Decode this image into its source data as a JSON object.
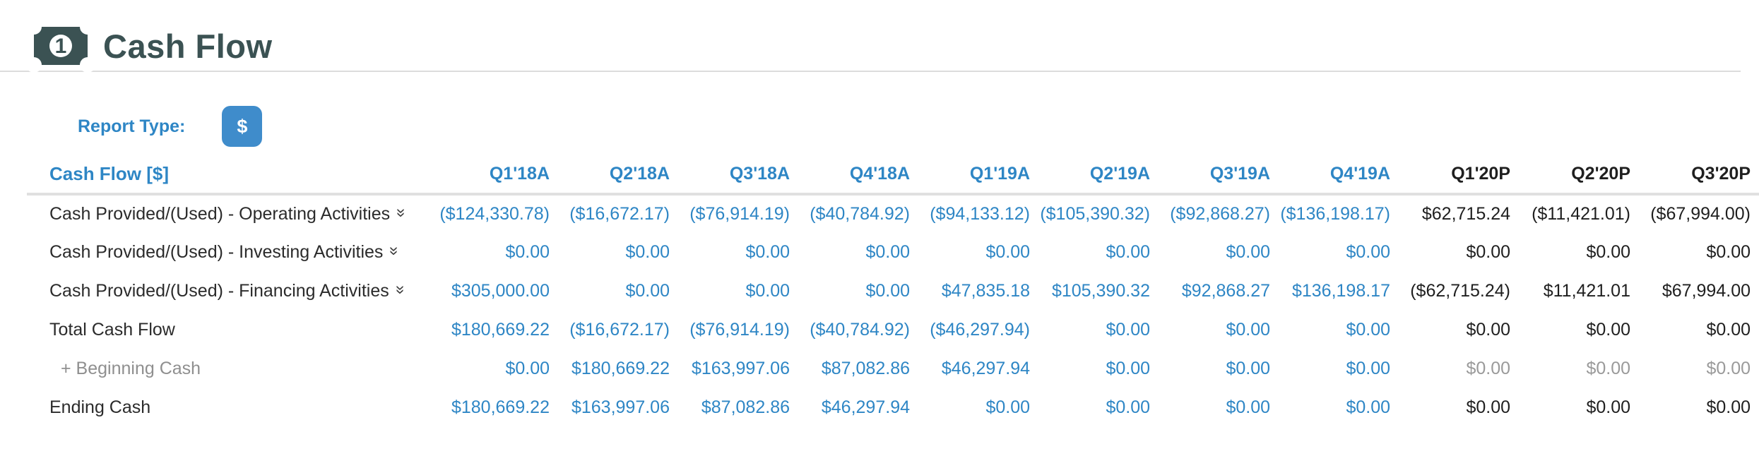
{
  "page": {
    "title": "Cash Flow"
  },
  "controls": {
    "report_type_label": "Report Type:",
    "report_type_button": "$"
  },
  "icons": {
    "title_icon": "banknote-icon",
    "expand_icon": "double-chevron-down-icon",
    "expand_glyph": "»"
  },
  "colors": {
    "title": "#3b5253",
    "accent_blue": "#2e86c5",
    "button_blue": "#3f8ccb",
    "projected_black": "#1f1f1f",
    "muted_gray": "#9a9a9a",
    "divider_gray": "#e0e0e0"
  },
  "table": {
    "title": "Cash Flow [$]",
    "columns": [
      {
        "label": "Q1'18A",
        "type": "actual"
      },
      {
        "label": "Q2'18A",
        "type": "actual"
      },
      {
        "label": "Q3'18A",
        "type": "actual"
      },
      {
        "label": "Q4'18A",
        "type": "actual"
      },
      {
        "label": "Q1'19A",
        "type": "actual"
      },
      {
        "label": "Q2'19A",
        "type": "actual"
      },
      {
        "label": "Q3'19A",
        "type": "actual"
      },
      {
        "label": "Q4'19A",
        "type": "actual"
      },
      {
        "label": "Q1'20P",
        "type": "projected"
      },
      {
        "label": "Q2'20P",
        "type": "projected"
      },
      {
        "label": "Q3'20P",
        "type": "projected"
      }
    ],
    "rows": [
      {
        "label": "Cash Provided/(Used) - Operating Activities",
        "expandable": true,
        "label_style": "normal",
        "projected_style": "dark",
        "values": [
          "($124,330.78)",
          "($16,672.17)",
          "($76,914.19)",
          "($40,784.92)",
          "($94,133.12)",
          "($105,390.32)",
          "($92,868.27)",
          "($136,198.17)",
          "$62,715.24",
          "($11,421.01)",
          "($67,994.00)"
        ]
      },
      {
        "label": "Cash Provided/(Used) - Investing Activities",
        "expandable": true,
        "label_style": "normal",
        "projected_style": "dark",
        "values": [
          "$0.00",
          "$0.00",
          "$0.00",
          "$0.00",
          "$0.00",
          "$0.00",
          "$0.00",
          "$0.00",
          "$0.00",
          "$0.00",
          "$0.00"
        ]
      },
      {
        "label": "Cash Provided/(Used) - Financing Activities",
        "expandable": true,
        "label_style": "normal",
        "projected_style": "dark",
        "values": [
          "$305,000.00",
          "$0.00",
          "$0.00",
          "$0.00",
          "$47,835.18",
          "$105,390.32",
          "$92,868.27",
          "$136,198.17",
          "($62,715.24)",
          "$11,421.01",
          "$67,994.00"
        ]
      },
      {
        "label": "Total Cash Flow",
        "expandable": false,
        "label_style": "normal",
        "projected_style": "dark",
        "values": [
          "$180,669.22",
          "($16,672.17)",
          "($76,914.19)",
          "($40,784.92)",
          "($46,297.94)",
          "$0.00",
          "$0.00",
          "$0.00",
          "$0.00",
          "$0.00",
          "$0.00"
        ]
      },
      {
        "label": "+ Beginning Cash",
        "expandable": false,
        "label_style": "muted",
        "projected_style": "muted",
        "values": [
          "$0.00",
          "$180,669.22",
          "$163,997.06",
          "$87,082.86",
          "$46,297.94",
          "$0.00",
          "$0.00",
          "$0.00",
          "$0.00",
          "$0.00",
          "$0.00"
        ]
      },
      {
        "label": "Ending Cash",
        "expandable": false,
        "label_style": "normal",
        "projected_style": "dark",
        "values": [
          "$180,669.22",
          "$163,997.06",
          "$87,082.86",
          "$46,297.94",
          "$0.00",
          "$0.00",
          "$0.00",
          "$0.00",
          "$0.00",
          "$0.00",
          "$0.00"
        ]
      }
    ]
  }
}
